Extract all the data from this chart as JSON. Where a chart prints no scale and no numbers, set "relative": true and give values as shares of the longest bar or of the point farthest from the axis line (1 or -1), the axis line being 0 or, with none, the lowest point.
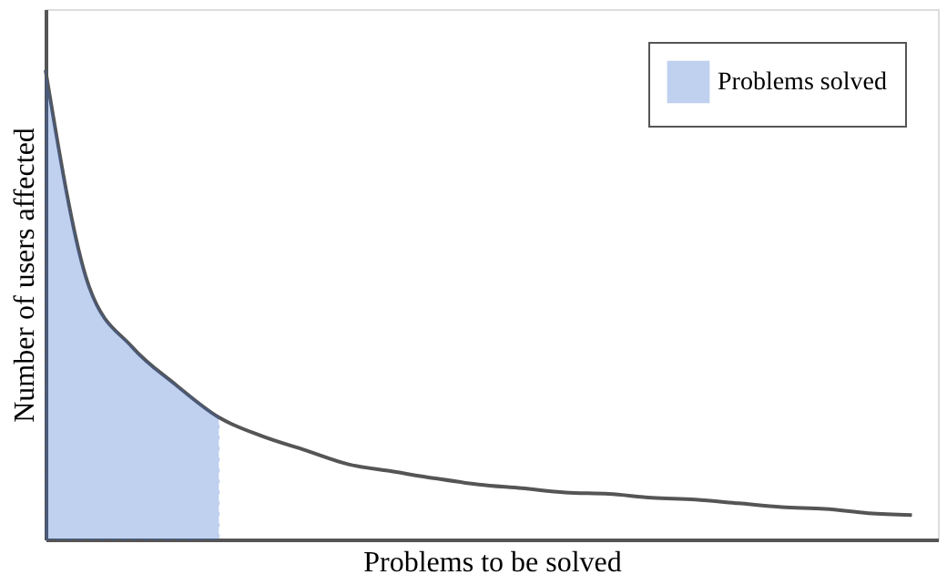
{
  "chart_data": {
    "type": "line",
    "relative": true,
    "xlabel": "Problems to be solved",
    "ylabel": "Number of users affected",
    "categories": [
      null,
      null,
      null,
      null,
      null,
      null,
      null,
      null,
      null,
      null,
      null,
      null,
      null,
      null,
      null,
      null,
      null,
      null,
      null,
      null,
      null
    ],
    "series": [
      {
        "color": "#555555",
        "values": [
          1.0,
          0.54,
          0.41,
          0.33,
          0.26,
          0.22,
          0.19,
          0.16,
          0.145,
          0.13,
          0.117,
          0.109,
          0.1,
          0.097,
          0.089,
          0.085,
          0.077,
          0.069,
          0.065,
          0.056,
          0.052
        ]
      },
      {
        "type": "area",
        "name": "Problems solved",
        "color": "#3366cc",
        "values": [
          1.0,
          0.54,
          0.41,
          0.33,
          0.26,
          null,
          null,
          null,
          null,
          null,
          null,
          null,
          null,
          null,
          null,
          null,
          null,
          null,
          null,
          null,
          null
        ]
      }
    ],
    "legend": "top right",
    "grid": false,
    "marker": "none"
  }
}
